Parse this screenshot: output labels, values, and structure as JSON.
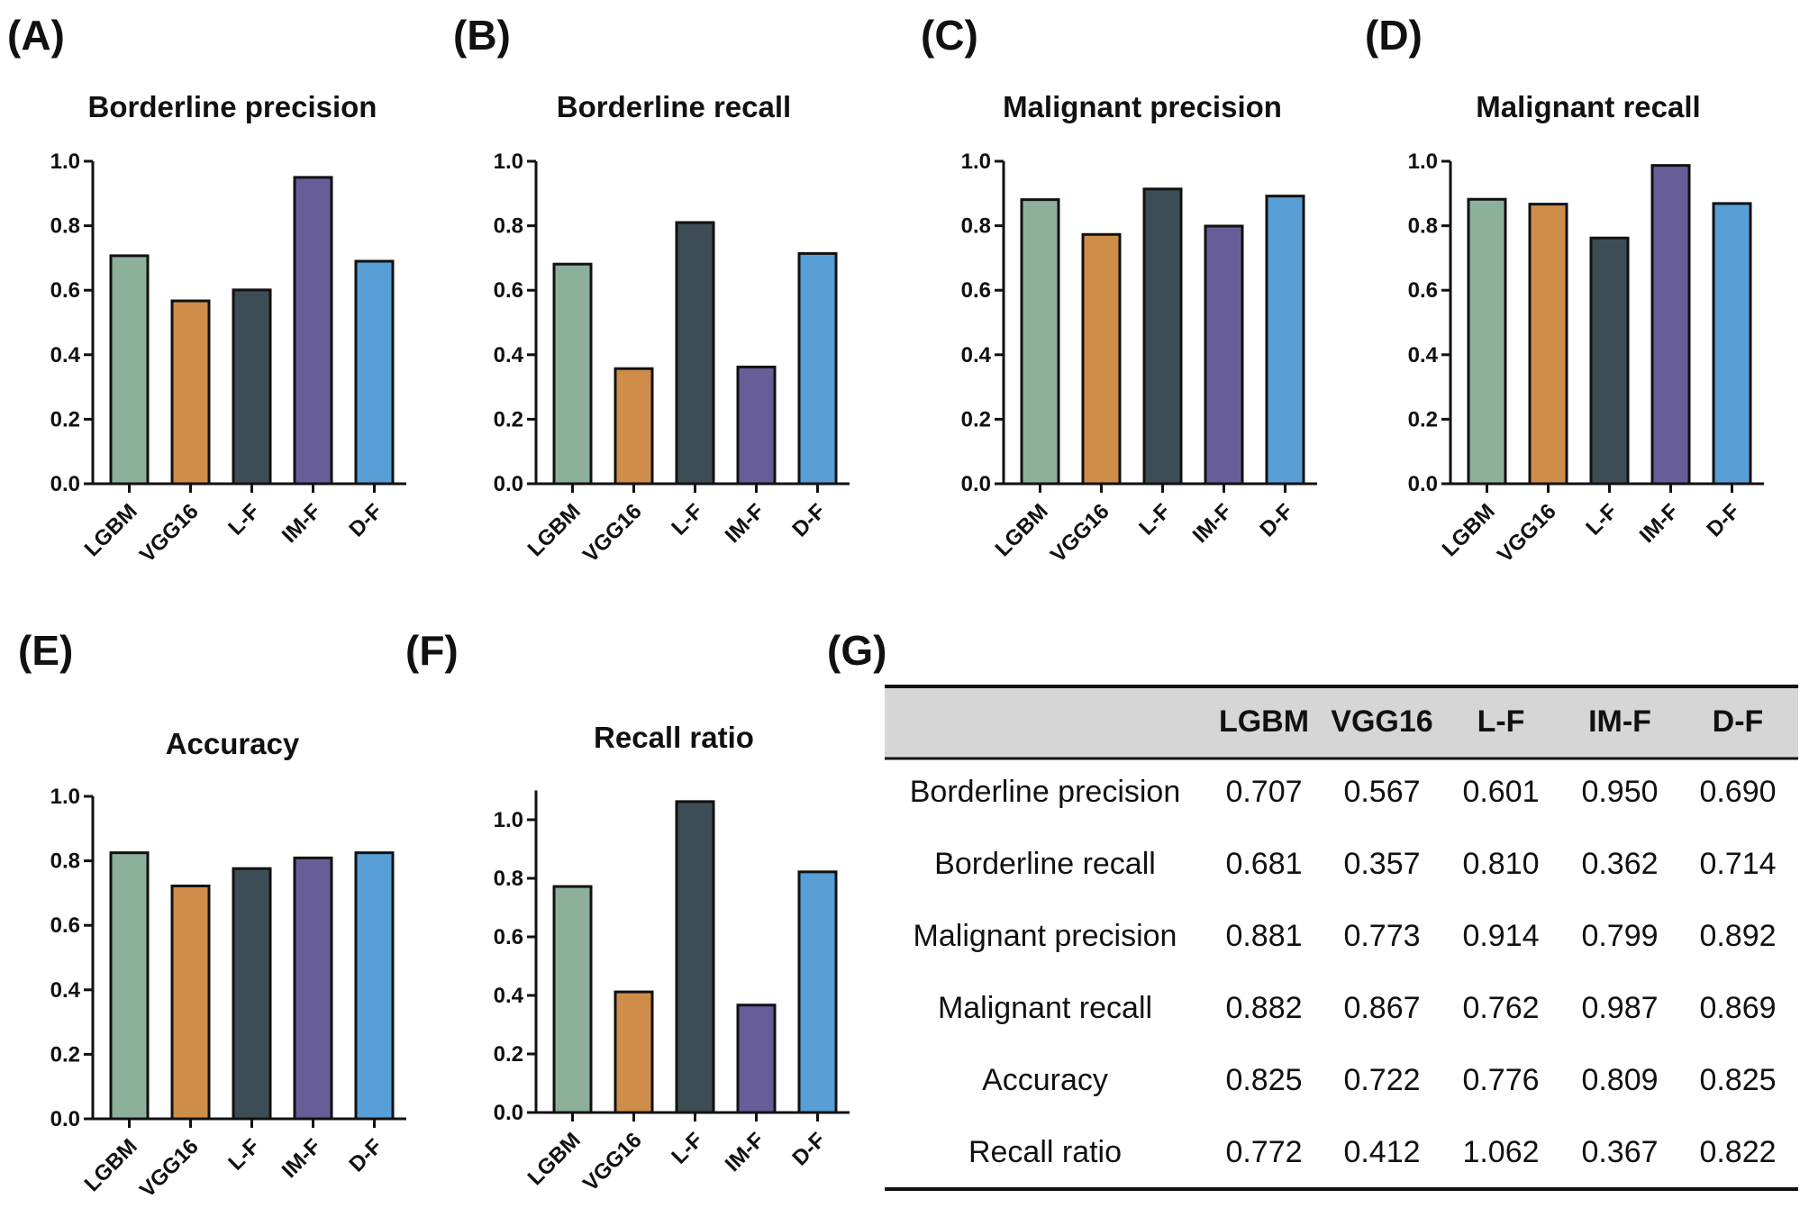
{
  "colors": {
    "LGBM": "#8db09a",
    "VGG16": "#cf8d4a",
    "L-F": "#3d4d55",
    "IM-F": "#675e99",
    "D-F": "#579fd6",
    "table_header_bg": "#d6d6d6"
  },
  "chart_data": [
    {
      "panel": "(A)",
      "type": "bar",
      "title": "Borderline precision",
      "categories": [
        "LGBM",
        "VGG16",
        "L-F",
        "IM-F",
        "D-F"
      ],
      "values": [
        0.707,
        0.567,
        0.601,
        0.95,
        0.69
      ],
      "ylim": [
        0,
        1.0
      ],
      "yticks": [
        "0.0",
        "0.2",
        "0.4",
        "0.6",
        "0.8",
        "1.0"
      ],
      "xlabel": "",
      "ylabel": ""
    },
    {
      "panel": "(B)",
      "type": "bar",
      "title": "Borderline recall",
      "categories": [
        "LGBM",
        "VGG16",
        "L-F",
        "IM-F",
        "D-F"
      ],
      "values": [
        0.681,
        0.357,
        0.81,
        0.362,
        0.714
      ],
      "ylim": [
        0,
        1.0
      ],
      "yticks": [
        "0.0",
        "0.2",
        "0.4",
        "0.6",
        "0.8",
        "1.0"
      ],
      "xlabel": "",
      "ylabel": ""
    },
    {
      "panel": "(C)",
      "type": "bar",
      "title": "Malignant precision",
      "categories": [
        "LGBM",
        "VGG16",
        "L-F",
        "IM-F",
        "D-F"
      ],
      "values": [
        0.881,
        0.773,
        0.914,
        0.799,
        0.892
      ],
      "ylim": [
        0,
        1.0
      ],
      "yticks": [
        "0.0",
        "0.2",
        "0.4",
        "0.6",
        "0.8",
        "1.0"
      ],
      "xlabel": "",
      "ylabel": ""
    },
    {
      "panel": "(D)",
      "type": "bar",
      "title": "Malignant recall",
      "categories": [
        "LGBM",
        "VGG16",
        "L-F",
        "IM-F",
        "D-F"
      ],
      "values": [
        0.882,
        0.867,
        0.762,
        0.987,
        0.869
      ],
      "ylim": [
        0,
        1.0
      ],
      "yticks": [
        "0.0",
        "0.2",
        "0.4",
        "0.6",
        "0.8",
        "1.0"
      ],
      "xlabel": "",
      "ylabel": ""
    },
    {
      "panel": "(E)",
      "type": "bar",
      "title": "Accuracy",
      "categories": [
        "LGBM",
        "VGG16",
        "L-F",
        "IM-F",
        "D-F"
      ],
      "values": [
        0.825,
        0.722,
        0.776,
        0.809,
        0.825
      ],
      "ylim": [
        0,
        1.0
      ],
      "yticks": [
        "0.0",
        "0.2",
        "0.4",
        "0.6",
        "0.8",
        "1.0"
      ],
      "xlabel": "",
      "ylabel": ""
    },
    {
      "panel": "(F)",
      "type": "bar",
      "title": "Recall ratio",
      "categories": [
        "LGBM",
        "VGG16",
        "L-F",
        "IM-F",
        "D-F"
      ],
      "values": [
        0.772,
        0.412,
        1.062,
        0.367,
        0.822
      ],
      "ylim": [
        0,
        1.1
      ],
      "yticks": [
        "0.0",
        "0.2",
        "0.4",
        "0.6",
        "0.8",
        "1.0"
      ],
      "xlabel": "",
      "ylabel": ""
    },
    {
      "panel": "(G)",
      "type": "table",
      "columns": [
        "",
        "LGBM",
        "VGG16",
        "L-F",
        "IM-F",
        "D-F"
      ],
      "rows": [
        [
          "Borderline precision",
          "0.707",
          "0.567",
          "0.601",
          "0.950",
          "0.690"
        ],
        [
          "Borderline recall",
          "0.681",
          "0.357",
          "0.810",
          "0.362",
          "0.714"
        ],
        [
          "Malignant precision",
          "0.881",
          "0.773",
          "0.914",
          "0.799",
          "0.892"
        ],
        [
          "Malignant recall",
          "0.882",
          "0.867",
          "0.762",
          "0.987",
          "0.869"
        ],
        [
          "Accuracy",
          "0.825",
          "0.722",
          "0.776",
          "0.809",
          "0.825"
        ],
        [
          "Recall ratio",
          "0.772",
          "0.412",
          "1.062",
          "0.367",
          "0.822"
        ]
      ]
    }
  ]
}
